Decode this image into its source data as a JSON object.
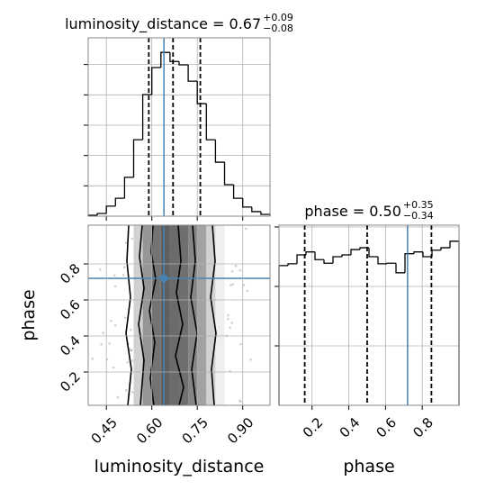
{
  "chart_data": [
    {
      "type": "histogram",
      "title": {
        "text": "luminosity_distance = 0.67",
        "upper": "+0.09",
        "lower": "−0.08"
      },
      "bins": [
        0.39,
        0.42,
        0.45,
        0.48,
        0.51,
        0.54,
        0.57,
        0.6,
        0.63,
        0.66,
        0.69,
        0.72,
        0.75,
        0.78,
        0.81,
        0.84,
        0.87,
        0.9,
        0.93,
        0.96,
        0.99
      ],
      "counts": [
        0.03,
        0.09,
        0.33,
        0.59,
        1.28,
        2.52,
        4.01,
        4.9,
        5.4,
        5.1,
        4.99,
        4.45,
        3.71,
        2.52,
        1.78,
        1.04,
        0.59,
        0.3,
        0.15,
        0.06
      ],
      "color": "#000000",
      "quantiles": [
        0.59,
        0.67,
        0.76
      ],
      "truth": 0.64,
      "truth_color": "#4682b4",
      "xlim": [
        0.39,
        0.99
      ],
      "ylim": [
        0,
        5.88
      ],
      "yticks": [
        1,
        2,
        3,
        4,
        5
      ],
      "grid": true
    },
    {
      "type": "hist2d",
      "xlabel": "luminosity_distance",
      "ylabel": "phase",
      "xlim": [
        0.39,
        0.99
      ],
      "ylim": [
        0.015,
        1.015
      ],
      "xticks": [
        0.45,
        {
          "value": 0.6,
          "label": "0.60"
        },
        0.75,
        {
          "value": 0.9,
          "label": "0.90"
        }
      ],
      "yticks": [
        0.2,
        0.4,
        0.6,
        0.8
      ],
      "truth_x": 0.64,
      "truth_y": 0.72,
      "truth_color": "#4682b4",
      "grid": true
    },
    {
      "type": "histogram",
      "title": {
        "text": "phase = 0.50",
        "upper": "+0.35",
        "lower": "−0.34"
      },
      "xlabel": "phase",
      "bins": [
        0.02,
        0.069,
        0.118,
        0.167,
        0.216,
        0.265,
        0.314,
        0.363,
        0.412,
        0.461,
        0.51,
        0.559,
        0.608,
        0.657,
        0.706,
        0.755,
        0.804,
        0.853,
        0.902,
        0.951,
        1.0
      ],
      "counts": [
        2.35,
        2.38,
        2.53,
        2.58,
        2.45,
        2.39,
        2.5,
        2.53,
        2.62,
        2.65,
        2.5,
        2.38,
        2.39,
        2.23,
        2.55,
        2.58,
        2.5,
        2.61,
        2.65,
        2.76
      ],
      "color": "#000000",
      "quantiles": [
        0.16,
        0.5,
        0.85
      ],
      "truth": 0.72,
      "truth_color": "#4682b4",
      "xlim": [
        0.02,
        1.0
      ],
      "ylim": [
        0,
        3.03
      ],
      "xticks": [
        0.2,
        0.4,
        0.6,
        0.8
      ],
      "yticks": [
        1,
        2,
        3
      ],
      "grid": true
    }
  ]
}
